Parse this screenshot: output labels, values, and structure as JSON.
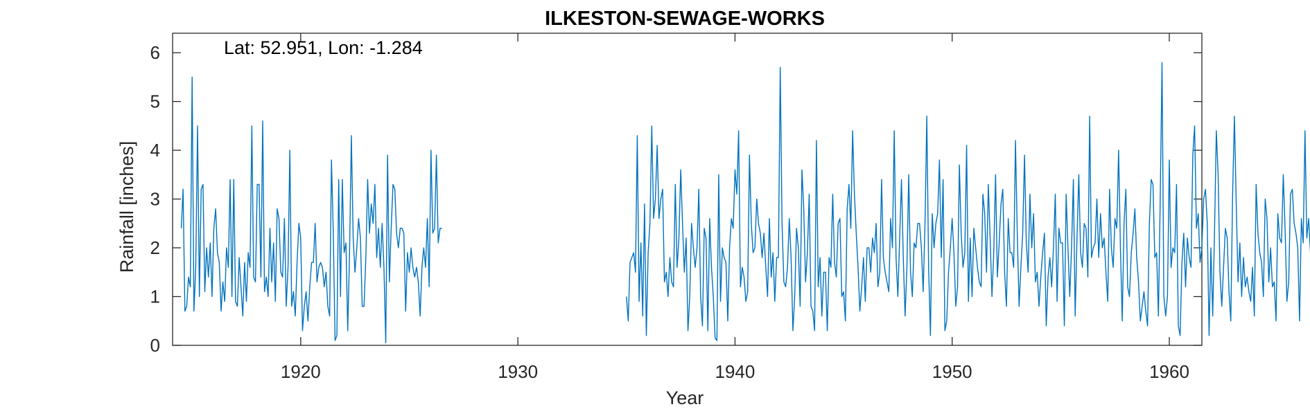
{
  "chart_data": {
    "type": "line",
    "title": "ILKESTON-SEWAGE-WORKS",
    "xlabel": "Year",
    "ylabel": "Rainfall [inches]",
    "annotation": "Lat: 52.951, Lon: -1.284",
    "xlim": [
      1914.1,
      1961.5
    ],
    "ylim": [
      0,
      6.4
    ],
    "xticks": [
      1920,
      1930,
      1940,
      1950,
      1960
    ],
    "yticks": [
      0,
      1,
      2,
      3,
      4,
      5,
      6
    ],
    "grid": false,
    "colors": {
      "series": "#0072BD",
      "axes": "#262626",
      "background": "#ffffff"
    },
    "series": [
      {
        "segments": [
          {
            "start": 1914.5,
            "step": 0.08333,
            "values": [
              2.4,
              3.2,
              0.7,
              0.8,
              1.4,
              1.2,
              5.5,
              0.7,
              1.6,
              4.5,
              1.0,
              3.2,
              3.3,
              1.1,
              2.0,
              1.4,
              2.1,
              1.0,
              2.4,
              2.8,
              1.9,
              1.7,
              0.7,
              1.3,
              0.9,
              2.0,
              1.6,
              3.4,
              1.0,
              3.4,
              0.9,
              0.8,
              1.8,
              1.2,
              0.6,
              1.7,
              0.9,
              1.9,
              1.6,
              4.5,
              1.4,
              1.3,
              3.3,
              3.3,
              1.4,
              4.6,
              1.1,
              1.4,
              1.0,
              2.4,
              1.3,
              2.1,
              0.9,
              2.8,
              2.6,
              1.5,
              1.4,
              2.6,
              0.8,
              1.6,
              4.0,
              0.8,
              1.1,
              0.6,
              1.7,
              2.5,
              2.2,
              0.3,
              0.8,
              1.1,
              0.5,
              1.2,
              1.7,
              1.7,
              2.5,
              1.3,
              1.6,
              1.7,
              1.6,
              1.2,
              1.5,
              0.8,
              0.6,
              3.8,
              2.3,
              0.1,
              0.2,
              3.4,
              1.0,
              3.4,
              1.9,
              2.1,
              0.3,
              1.9,
              4.3,
              2.2,
              1.5,
              2.0,
              2.6,
              2.2,
              0.8,
              0.8,
              1.8,
              3.4,
              2.3,
              2.9,
              2.5,
              3.3,
              1.8,
              2.4,
              1.6,
              2.5,
              1.6,
              0.05,
              3.9,
              1.3,
              2.4,
              3.3,
              3.2,
              2.3,
              2.0,
              2.4,
              2.4,
              2.3,
              0.7,
              1.9,
              1.5,
              2.0,
              1.6,
              1.4,
              1.6,
              1.3,
              0.6,
              1.6,
              2.0,
              1.6,
              2.6,
              1.2,
              4.0,
              2.3,
              2.4,
              3.9,
              2.1,
              2.4,
              2.4
            ]
          },
          {
            "start": 1935.0,
            "step": 0.08333,
            "values": [
              1.0,
              0.5,
              1.7,
              1.8,
              1.9,
              1.5,
              4.3,
              0.9,
              2.1,
              0.6,
              2.9,
              0.2,
              1.9,
              2.5,
              4.5,
              2.6,
              3.0,
              4.1,
              2.6,
              3.0,
              3.2,
              1.3,
              1.5,
              1.0,
              1.8,
              1.3,
              1.2,
              3.3,
              1.6,
              2.2,
              3.6,
              2.5,
              1.5,
              2.2,
              0.3,
              1.0,
              2.5,
              2.0,
              1.6,
              2.0,
              3.2,
              1.0,
              0.4,
              2.4,
              2.2,
              0.3,
              2.6,
              1.6,
              1.0,
              0.15,
              0.1,
              3.5,
              0.9,
              2.0,
              1.8,
              1.7,
              0.5,
              2.0,
              2.6,
              2.4,
              3.6,
              3.1,
              4.4,
              1.2,
              1.6,
              1.4,
              0.9,
              1.1,
              3.9,
              2.5,
              1.9,
              2.0,
              3.0,
              2.5,
              2.3,
              1.8,
              2.3,
              1.6,
              1.0,
              2.6,
              1.4,
              1.9,
              0.9,
              1.8,
              1.8,
              5.7,
              2.5,
              1.3,
              1.2,
              1.6,
              2.6,
              1.8,
              0.3,
              1.0,
              2.4,
              2.0,
              0.8,
              3.6,
              2.8,
              1.3,
              1.9,
              3.1,
              0.8,
              0.7,
              0.3,
              4.2,
              1.2,
              1.8,
              0.6,
              1.5,
              1.5,
              0.3,
              1.8,
              1.6,
              3.1,
              1.7,
              1.4,
              2.5,
              2.6,
              1.0,
              1.1,
              0.5,
              2.8,
              3.3,
              2.4,
              4.4,
              3.1,
              2.3,
              1.6,
              0.7,
              1.2,
              1.8,
              0.9,
              2.0,
              2.0,
              1.5,
              2.2,
              1.9,
              2.5,
              1.2,
              1.5,
              3.4,
              1.8,
              1.5,
              1.3,
              1.1,
              2.6,
              2.0,
              4.4,
              1.8,
              1.0,
              2.2,
              3.4,
              1.8,
              0.6,
              1.6,
              3.5,
              1.5,
              1.0,
              2.1,
              2.0,
              2.5,
              2.5,
              2.0,
              1.1,
              2.5,
              4.7,
              1.6,
              0.2,
              2.7,
              2.0,
              2.5,
              2.7,
              3.8,
              1.8,
              3.4,
              0.3,
              0.5,
              1.5,
              2.0,
              2.6,
              1.9,
              0.8,
              1.2,
              3.7,
              2.3,
              1.6,
              1.9,
              4.1,
              0.9,
              2.2,
              1.0,
              2.4,
              2.0,
              1.6,
              1.3,
              1.2,
              3.1,
              2.7,
              1.5,
              3.3,
              2.2,
              1.0,
              1.9,
              3.5,
              1.4,
              2.1,
              2.9,
              3.2,
              1.5,
              0.8,
              2.6,
              1.9,
              1.9,
              1.6,
              4.2,
              2.3,
              0.8,
              1.6,
              2.3,
              3.9,
              2.1,
              1.5,
              3.1,
              2.0,
              2.7,
              1.3,
              1.5,
              0.8,
              1.4,
              1.9,
              2.3,
              0.4,
              1.4,
              1.8,
              1.2,
              2.0,
              3.1,
              0.9,
              2.4,
              2.1,
              2.1,
              0.4,
              3.1,
              2.0,
              1.0,
              2.0,
              3.4,
              0.6,
              2.2,
              3.5,
              1.9,
              1.6,
              2.5,
              2.4,
              1.4,
              4.7,
              1.8,
              2.0,
              2.1,
              3.0,
              1.8,
              2.7,
              2.0,
              2.2,
              1.5,
              0.9,
              3.2,
              2.0,
              1.6,
              2.6,
              2.4,
              4.0,
              2.0,
              0.5,
              2.5,
              3.2,
              1.2,
              1.0,
              1.9,
              2.3,
              2.8,
              1.8,
              1.3,
              0.5,
              0.8,
              1.1,
              0.7,
              0.4,
              2.5,
              3.4,
              3.3,
              1.8,
              1.9,
              0.6,
              3.0,
              5.8,
              1.0,
              0.6,
              1.0,
              3.8,
              1.6,
              2.0,
              1.9,
              3.3,
              0.4,
              0.2,
              1.7,
              2.3,
              1.2,
              2.2,
              1.8,
              1.6,
              3.9,
              4.5,
              2.4,
              2.7,
              1.7,
              2.0,
              3.0,
              3.2,
              2.5,
              0.2,
              2.0,
              0.6,
              2.3,
              4.4,
              3.5,
              1.5,
              0.8,
              1.6,
              2.4,
              2.2,
              1.1,
              0.5,
              3.1,
              4.7,
              2.9,
              1.3,
              2.1,
              1.0,
              1.8,
              1.2,
              1.4,
              1.1,
              0.9,
              1.6,
              0.6,
              3.3,
              2.3,
              1.9,
              1.7,
              1.0,
              3.0,
              2.6,
              1.3,
              2.0,
              1.2,
              1.3,
              0.5,
              2.7,
              2.2,
              2.1,
              3.5,
              2.4,
              0.9,
              1.3,
              3.1,
              3.2,
              2.5,
              2.3,
              2.0,
              0.5,
              2.6,
              2.1,
              4.4,
              2.2,
              2.6,
              1.9,
              1.9,
              1.5,
              3.1,
              2.6,
              2.0,
              0.3,
              2.5,
              1.7,
              0.7,
              1.1,
              1.0,
              3.2,
              2.3,
              1.4,
              2.5,
              0.5,
              3.0,
              2.1,
              1.8,
              1.1,
              0.4,
              3.4,
              2.7,
              3.2,
              1.2,
              1.7,
              1.5,
              2.1,
              1.4,
              1.2,
              0.7,
              1.6,
              2.2,
              0.6,
              1.6,
              1.2,
              1.9,
              2.4,
              2.4,
              2.8,
              1.3,
              2.1,
              3.9,
              2.3,
              1.6,
              1.1,
              0.6,
              2.4,
              2.0,
              0.5,
              1.5,
              2.2,
              1.5,
              2.5,
              2.6,
              1.9,
              1.4,
              4.3,
              1.0,
              2.0,
              2.0,
              2.1,
              2.3,
              3.3,
              1.5,
              3.0,
              1.0,
              2.9,
              2.1,
              3.6,
              1.4,
              0.3,
              2.0,
              1.1,
              2.5,
              2.3,
              2.2,
              1.0,
              1.2,
              2.7,
              1.7,
              2.0,
              3.0,
              2.6,
              4.2,
              3.6,
              2.3,
              1.8,
              2.9,
              3.8,
              2.5,
              2.0,
              2.3,
              2.8,
              1.0,
              0.7,
              1.6,
              3.2,
              0.8,
              1.6,
              1.2,
              1.1,
              0.1,
              2.3,
              2.3,
              3.6
            ]
          }
        ]
      }
    ]
  }
}
